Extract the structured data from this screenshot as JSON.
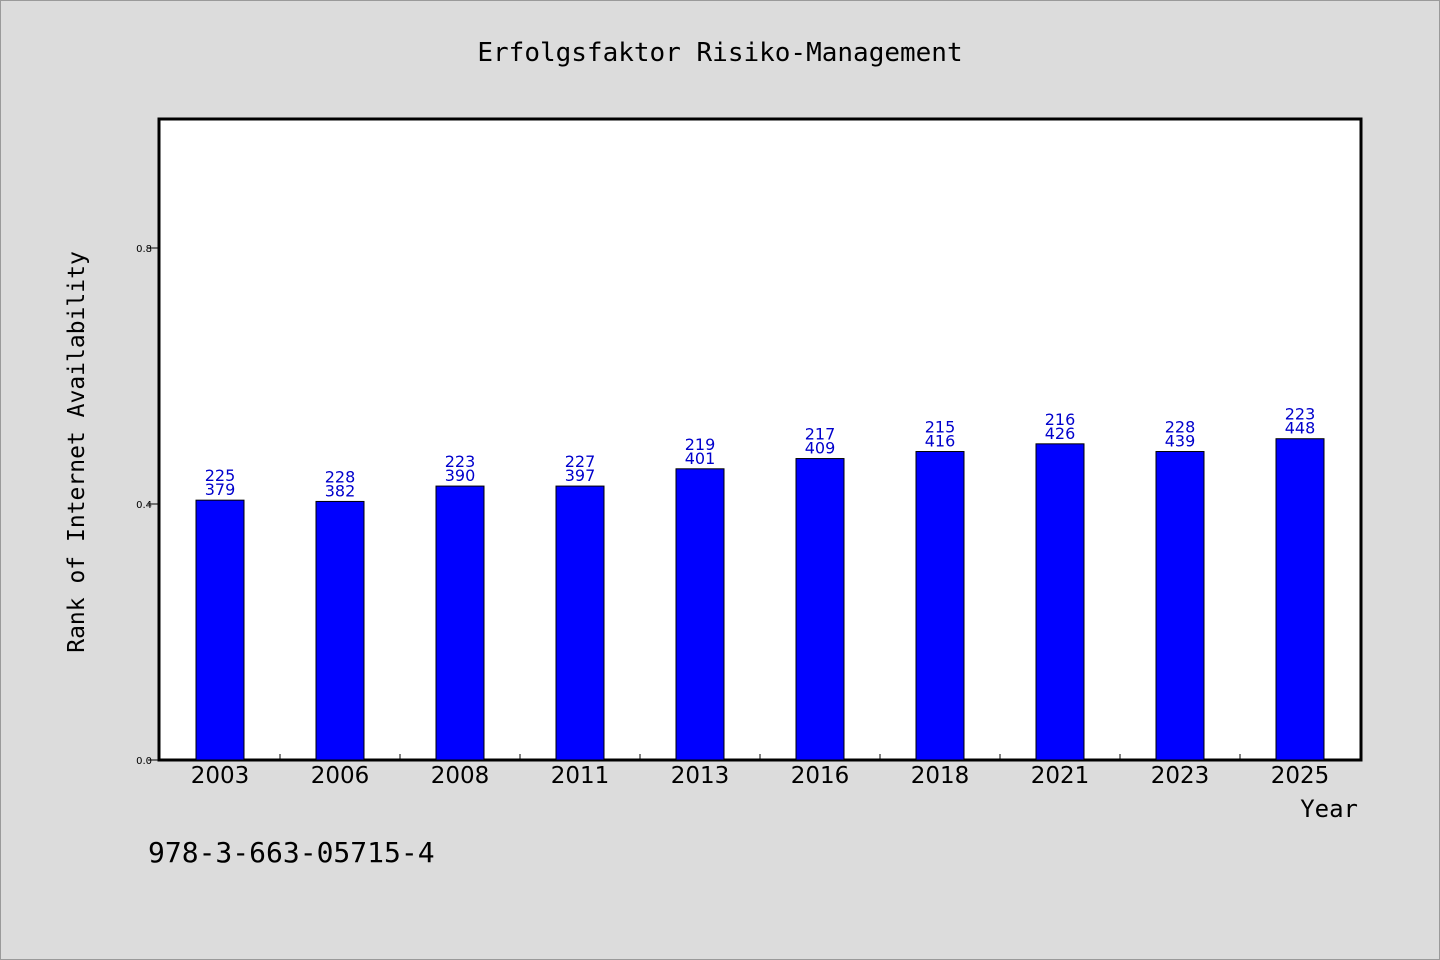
{
  "chart_data": {
    "type": "bar",
    "title": "Erfolgsfaktor Risiko-Management",
    "xlabel": "Year",
    "ylabel": "Rank of Internet Availability",
    "categories": [
      "2003",
      "2006",
      "2008",
      "2011",
      "2013",
      "2016",
      "2018",
      "2021",
      "2023",
      "2025"
    ],
    "values": [
      0.406,
      0.404,
      0.428,
      0.428,
      0.455,
      0.471,
      0.482,
      0.494,
      0.482,
      0.502
    ],
    "bar_labels_top": [
      "225",
      "228",
      "223",
      "227",
      "219",
      "217",
      "215",
      "216",
      "228",
      "223"
    ],
    "bar_labels_bottom": [
      "379",
      "382",
      "390",
      "397",
      "401",
      "409",
      "416",
      "426",
      "439",
      "448"
    ],
    "yticks": [
      "0.0",
      "0.4",
      "0.8"
    ],
    "ytick_values": [
      0.0,
      0.4,
      0.8
    ],
    "ylim": [
      0,
      1.0
    ],
    "grid": false,
    "bar_color": "#0000ff",
    "label_color": "#0000cc"
  },
  "footnote": "978-3-663-05715-4"
}
